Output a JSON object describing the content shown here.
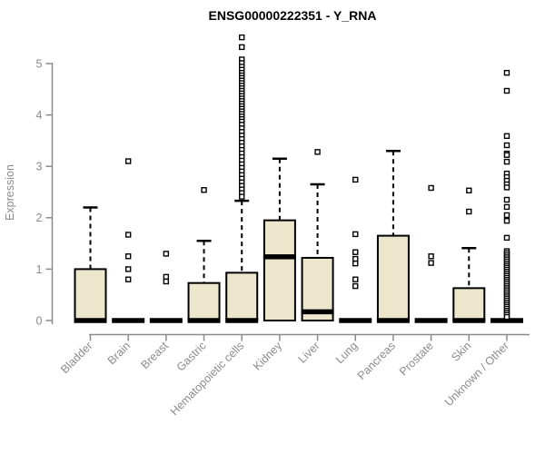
{
  "chart_data": {
    "type": "boxplot",
    "title": "ENSG00000222351 - Y_RNA",
    "ylabel": "Expression",
    "xlabel": "",
    "y_ticks": [
      0,
      1,
      2,
      3,
      4,
      5
    ],
    "ylim": [
      0,
      5.6
    ],
    "grid": "off",
    "legend": "none",
    "categories": [
      "Bladder",
      "Brain",
      "Breast",
      "Gastric",
      "Hematopoietic cells",
      "Kidney",
      "Liver",
      "Lung",
      "Pancreas",
      "Prostate",
      "Skin",
      "Unknown / Other"
    ],
    "boxes": [
      {
        "category": "Bladder",
        "q1": 0,
        "median": 0,
        "q3": 1.0,
        "whisker_high": 2.2,
        "outliers": []
      },
      {
        "category": "Brain",
        "q1": 0,
        "median": 0,
        "q3": 0,
        "whisker_high": 0,
        "outliers": [
          3.1,
          1.67,
          1.25,
          1.0,
          0.8
        ]
      },
      {
        "category": "Breast",
        "q1": 0,
        "median": 0,
        "q3": 0,
        "whisker_high": 0,
        "outliers": [
          1.3,
          0.85,
          0.76
        ]
      },
      {
        "category": "Gastric",
        "q1": 0,
        "median": 0,
        "q3": 0.73,
        "whisker_high": 1.55,
        "outliers": [
          2.54
        ]
      },
      {
        "category": "Hematopoietic cells",
        "q1": 0,
        "median": 0,
        "q3": 0.93,
        "whisker_high": 2.33,
        "outliers": [
          5.51,
          5.32,
          5.08,
          5.01,
          4.94,
          4.88,
          4.82,
          4.77,
          4.72,
          4.67,
          4.62,
          4.57,
          4.52,
          4.47,
          4.42,
          4.37,
          4.32,
          4.27,
          4.22,
          4.17,
          4.12,
          4.07,
          4.02,
          3.97,
          3.92,
          3.87,
          3.81,
          3.74,
          3.67,
          3.6,
          3.53,
          3.46,
          3.39,
          3.32,
          3.25,
          3.18,
          3.11,
          3.04,
          2.97,
          2.9,
          2.83,
          2.76,
          2.69,
          2.62,
          2.55,
          2.48,
          2.41
        ]
      },
      {
        "category": "Kidney",
        "q1": 0,
        "median": 1.24,
        "q3": 1.95,
        "whisker_high": 3.15,
        "outliers": []
      },
      {
        "category": "Liver",
        "q1": 0,
        "median": 0.17,
        "q3": 1.22,
        "whisker_high": 2.65,
        "outliers": [
          3.28
        ]
      },
      {
        "category": "Lung",
        "q1": 0,
        "median": 0,
        "q3": 0,
        "whisker_high": 0,
        "outliers": [
          2.74,
          1.68,
          1.33,
          1.2,
          1.11,
          0.8,
          0.67
        ]
      },
      {
        "category": "Pancreas",
        "q1": 0,
        "median": 0,
        "q3": 1.65,
        "whisker_high": 3.3,
        "outliers": []
      },
      {
        "category": "Prostate",
        "q1": 0,
        "median": 0,
        "q3": 0,
        "whisker_high": 0,
        "outliers": [
          2.58,
          1.25,
          1.12
        ]
      },
      {
        "category": "Skin",
        "q1": 0,
        "median": 0,
        "q3": 0.63,
        "whisker_high": 1.41,
        "outliers": [
          2.53,
          2.12
        ]
      },
      {
        "category": "Unknown / Other",
        "q1": 0,
        "median": 0,
        "q3": 0,
        "whisker_high": 0,
        "outliers": [
          4.82,
          4.47,
          3.59,
          3.41,
          3.25,
          3.22,
          3.09,
          2.86,
          2.79,
          2.72,
          2.65,
          2.59,
          2.35,
          2.21,
          2.05,
          1.94,
          1.61,
          1.35,
          1.31,
          1.27,
          1.23,
          1.19,
          1.15,
          1.11,
          1.07,
          1.03,
          0.99,
          0.95,
          0.91,
          0.87,
          0.83,
          0.79,
          0.75,
          0.71,
          0.67,
          0.63,
          0.59,
          0.55,
          0.51,
          0.47,
          0.43,
          0.39,
          0.35,
          0.31,
          0.27,
          0.23,
          0.19,
          0.15,
          0.11,
          0.07
        ]
      }
    ],
    "colors": {
      "box_fill": "#ECE7CC",
      "box_border": "#000000",
      "median": "#000000",
      "whisker": "#000000",
      "outlier_stroke": "#000000",
      "outlier_fill": "#ffffff",
      "axis": "#8b8b8b",
      "tick_text": "#8b8b8b",
      "title_text": "#000000"
    }
  }
}
